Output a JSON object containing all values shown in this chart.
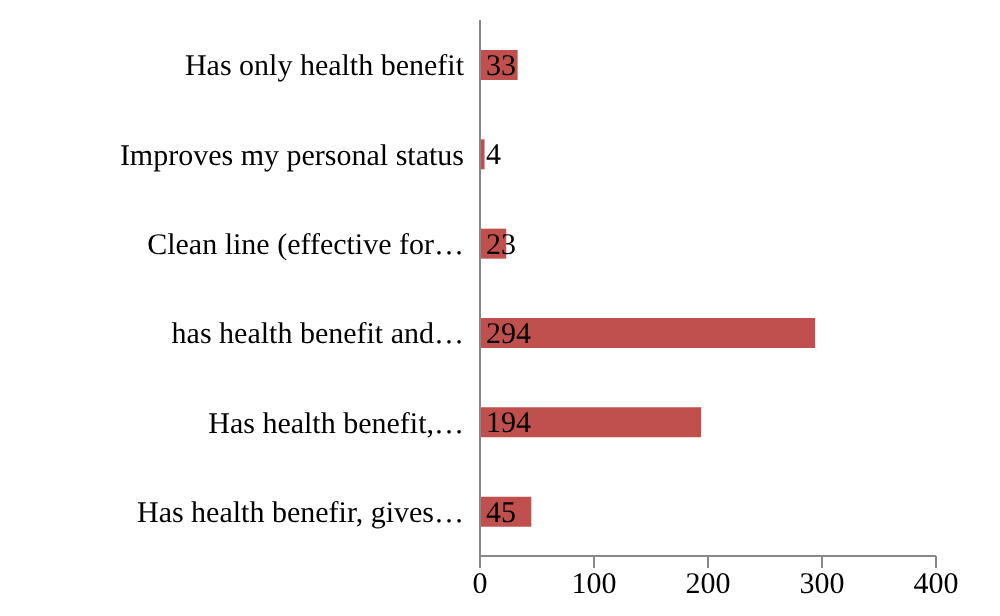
{
  "chart_data": {
    "type": "bar",
    "orientation": "horizontal",
    "categories": [
      "Has only health benefit",
      "Improves my personal status",
      "Clean line (effective for…",
      "has health benefit and…",
      "Has health benefit,…",
      "Has health benefir, gives…"
    ],
    "values": [
      33,
      4,
      23,
      294,
      194,
      45
    ],
    "color": "#c0504d",
    "xlim": [
      0,
      400
    ],
    "xticks": [
      0,
      100,
      200,
      300,
      400
    ],
    "grid": false,
    "legend": false,
    "data_labels": true
  }
}
